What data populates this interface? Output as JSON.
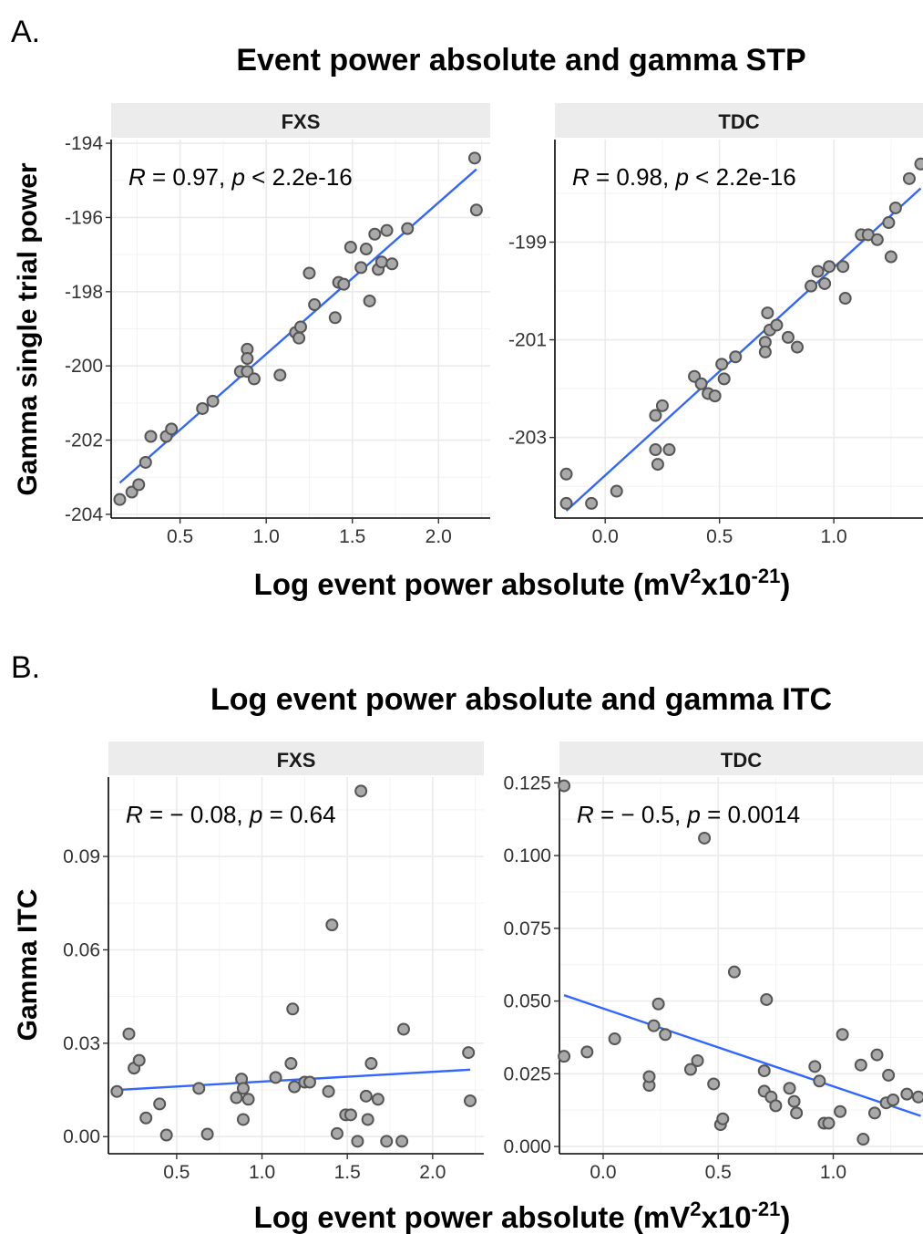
{
  "panels": [
    {
      "label": "A.",
      "title": "Event power absolute and gamma STP",
      "ylabel": "Gamma single trial power",
      "xlabel_main": "Log event power absolute (mV",
      "xlabel_sup1": "2",
      "xlabel_mid": "x10",
      "xlabel_sup2": "-21",
      "xlabel_end": ")"
    },
    {
      "label": "B.",
      "title": "Log event power absolute and gamma ITC",
      "ylabel": "Gamma ITC",
      "xlabel_main": "Log event power absolute (mV",
      "xlabel_sup1": "2",
      "xlabel_mid": "x10",
      "xlabel_sup2": "-21",
      "xlabel_end": ")"
    }
  ],
  "chart_data": [
    {
      "type": "scatter",
      "panel": "A",
      "facet": "FXS",
      "stat": {
        "R": "0.97",
        "p": "< 2.2e-16"
      },
      "xlim": [
        0.1,
        2.3
      ],
      "ylim": [
        -204.1,
        -193.9
      ],
      "xticks": [
        0.5,
        1.0,
        1.5,
        2.0
      ],
      "xtick_labels": [
        "0.5",
        "1.0",
        "1.5",
        "2.0"
      ],
      "yticks": [
        -204,
        -202,
        -200,
        -198,
        -196,
        -194
      ],
      "ytick_labels": [
        "-204",
        "-202",
        "-200",
        "-198",
        "-196",
        "-194"
      ],
      "grid": true,
      "points": [
        [
          0.15,
          -203.6
        ],
        [
          0.22,
          -203.4
        ],
        [
          0.26,
          -203.2
        ],
        [
          0.3,
          -202.6
        ],
        [
          0.33,
          -201.9
        ],
        [
          0.42,
          -201.9
        ],
        [
          0.45,
          -201.7
        ],
        [
          0.63,
          -201.15
        ],
        [
          0.69,
          -200.95
        ],
        [
          0.85,
          -200.15
        ],
        [
          0.89,
          -200.15
        ],
        [
          0.89,
          -199.55
        ],
        [
          0.89,
          -199.8
        ],
        [
          0.93,
          -200.35
        ],
        [
          1.08,
          -200.25
        ],
        [
          1.17,
          -199.1
        ],
        [
          1.19,
          -199.25
        ],
        [
          1.2,
          -198.95
        ],
        [
          1.25,
          -197.5
        ],
        [
          1.28,
          -198.35
        ],
        [
          1.4,
          -198.7
        ],
        [
          1.42,
          -197.75
        ],
        [
          1.45,
          -197.8
        ],
        [
          1.49,
          -196.8
        ],
        [
          1.55,
          -197.35
        ],
        [
          1.58,
          -196.85
        ],
        [
          1.6,
          -198.25
        ],
        [
          1.63,
          -196.45
        ],
        [
          1.65,
          -197.4
        ],
        [
          1.67,
          -197.2
        ],
        [
          1.7,
          -196.35
        ],
        [
          1.73,
          -197.25
        ],
        [
          1.82,
          -196.3
        ],
        [
          2.21,
          -194.4
        ],
        [
          2.22,
          -195.8
        ]
      ],
      "fit": {
        "x": [
          0.15,
          2.22
        ],
        "y": [
          -203.15,
          -194.7
        ]
      }
    },
    {
      "type": "scatter",
      "panel": "A",
      "facet": "TDC",
      "stat": {
        "R": "0.98",
        "p": "< 2.2e-16"
      },
      "xlim": [
        -0.22,
        1.39
      ],
      "ylim": [
        -204.65,
        -196.9
      ],
      "xticks": [
        0.0,
        0.5,
        1.0
      ],
      "xtick_labels": [
        "0.0",
        "0.5",
        "1.0"
      ],
      "yticks": [
        -203,
        -201,
        -199
      ],
      "ytick_labels": [
        "-203",
        "-201",
        "-199"
      ],
      "grid": true,
      "points": [
        [
          -0.17,
          -203.75
        ],
        [
          -0.17,
          -204.35
        ],
        [
          -0.06,
          -204.35
        ],
        [
          0.05,
          -204.1
        ],
        [
          0.22,
          -202.55
        ],
        [
          0.22,
          -203.25
        ],
        [
          0.23,
          -203.55
        ],
        [
          0.25,
          -202.35
        ],
        [
          0.28,
          -203.25
        ],
        [
          0.39,
          -201.75
        ],
        [
          0.42,
          -201.9
        ],
        [
          0.45,
          -202.1
        ],
        [
          0.48,
          -202.15
        ],
        [
          0.51,
          -201.5
        ],
        [
          0.52,
          -201.8
        ],
        [
          0.57,
          -201.35
        ],
        [
          0.7,
          -201.05
        ],
        [
          0.7,
          -201.25
        ],
        [
          0.71,
          -200.45
        ],
        [
          0.72,
          -200.8
        ],
        [
          0.75,
          -200.7
        ],
        [
          0.8,
          -200.95
        ],
        [
          0.84,
          -201.15
        ],
        [
          0.9,
          -199.9
        ],
        [
          0.93,
          -199.6
        ],
        [
          0.96,
          -199.85
        ],
        [
          0.98,
          -199.5
        ],
        [
          1.04,
          -199.5
        ],
        [
          1.05,
          -200.15
        ],
        [
          1.12,
          -198.85
        ],
        [
          1.15,
          -198.85
        ],
        [
          1.19,
          -198.95
        ],
        [
          1.24,
          -198.6
        ],
        [
          1.25,
          -199.3
        ],
        [
          1.27,
          -198.3
        ],
        [
          1.33,
          -197.7
        ],
        [
          1.38,
          -197.4
        ]
      ],
      "fit": {
        "x": [
          -0.17,
          1.38
        ],
        "y": [
          -204.5,
          -197.9
        ]
      }
    },
    {
      "type": "scatter",
      "panel": "B",
      "facet": "FXS",
      "stat": {
        "R": "− 0.08",
        "p": "= 0.64"
      },
      "xlim": [
        0.1,
        2.3
      ],
      "ylim": [
        -0.0055,
        0.1155
      ],
      "xticks": [
        0.5,
        1.0,
        1.5,
        2.0
      ],
      "xtick_labels": [
        "0.5",
        "1.0",
        "1.5",
        "2.0"
      ],
      "yticks": [
        0.0,
        0.03,
        0.06,
        0.09
      ],
      "ytick_labels": [
        "0.00",
        "0.03",
        "0.06",
        "0.09"
      ],
      "grid": true,
      "points": [
        [
          0.15,
          0.0145
        ],
        [
          0.22,
          0.033
        ],
        [
          0.25,
          0.022
        ],
        [
          0.28,
          0.0245
        ],
        [
          0.32,
          0.006
        ],
        [
          0.4,
          0.0105
        ],
        [
          0.44,
          0.0005
        ],
        [
          0.63,
          0.0155
        ],
        [
          0.68,
          0.0008
        ],
        [
          0.85,
          0.0125
        ],
        [
          0.88,
          0.0185
        ],
        [
          0.89,
          0.0155
        ],
        [
          0.89,
          0.0055
        ],
        [
          0.92,
          0.012
        ],
        [
          1.08,
          0.019
        ],
        [
          1.17,
          0.0235
        ],
        [
          1.18,
          0.041
        ],
        [
          1.19,
          0.016
        ],
        [
          1.25,
          0.0175
        ],
        [
          1.28,
          0.0175
        ],
        [
          1.39,
          0.0145
        ],
        [
          1.41,
          0.068
        ],
        [
          1.44,
          0.001
        ],
        [
          1.49,
          0.007
        ],
        [
          1.52,
          0.007
        ],
        [
          1.56,
          -0.0015
        ],
        [
          1.58,
          0.111
        ],
        [
          1.61,
          0.013
        ],
        [
          1.62,
          0.0055
        ],
        [
          1.64,
          0.0235
        ],
        [
          1.68,
          0.012
        ],
        [
          1.73,
          -0.0015
        ],
        [
          1.82,
          -0.0015
        ],
        [
          1.83,
          0.0345
        ],
        [
          2.21,
          0.027
        ],
        [
          2.22,
          0.0115
        ]
      ],
      "fit": {
        "x": [
          0.15,
          2.22
        ],
        "y": [
          0.015,
          0.0215
        ]
      }
    },
    {
      "type": "scatter",
      "panel": "B",
      "facet": "TDC",
      "stat": {
        "R": "− 0.5",
        "p": "= 0.0014"
      },
      "xlim": [
        -0.19,
        1.39
      ],
      "ylim": [
        -0.0025,
        0.127
      ],
      "xticks": [
        0.0,
        0.5,
        1.0
      ],
      "xtick_labels": [
        "0.0",
        "0.5",
        "1.0"
      ],
      "yticks": [
        0.0,
        0.025,
        0.05,
        0.075,
        0.1,
        0.125
      ],
      "ytick_labels": [
        "0.000",
        "0.025",
        "0.050",
        "0.075",
        "0.100",
        "0.125"
      ],
      "grid": true,
      "points": [
        [
          -0.17,
          0.124
        ],
        [
          -0.17,
          0.031
        ],
        [
          -0.07,
          0.0325
        ],
        [
          0.05,
          0.037
        ],
        [
          0.2,
          0.021
        ],
        [
          0.2,
          0.024
        ],
        [
          0.22,
          0.0415
        ],
        [
          0.24,
          0.049
        ],
        [
          0.27,
          0.0385
        ],
        [
          0.38,
          0.0265
        ],
        [
          0.41,
          0.0295
        ],
        [
          0.44,
          0.106
        ],
        [
          0.48,
          0.0215
        ],
        [
          0.51,
          0.0075
        ],
        [
          0.52,
          0.0095
        ],
        [
          0.57,
          0.06
        ],
        [
          0.7,
          0.026
        ],
        [
          0.7,
          0.019
        ],
        [
          0.71,
          0.0505
        ],
        [
          0.73,
          0.017
        ],
        [
          0.75,
          0.014
        ],
        [
          0.81,
          0.02
        ],
        [
          0.83,
          0.0155
        ],
        [
          0.84,
          0.0115
        ],
        [
          0.92,
          0.0275
        ],
        [
          0.94,
          0.0225
        ],
        [
          0.96,
          0.008
        ],
        [
          0.98,
          0.008
        ],
        [
          1.03,
          0.012
        ],
        [
          1.04,
          0.0385
        ],
        [
          1.12,
          0.028
        ],
        [
          1.13,
          0.0025
        ],
        [
          1.18,
          0.0115
        ],
        [
          1.19,
          0.0315
        ],
        [
          1.23,
          0.015
        ],
        [
          1.24,
          0.0245
        ],
        [
          1.26,
          0.016
        ],
        [
          1.32,
          0.018
        ],
        [
          1.37,
          0.017
        ]
      ],
      "fit": {
        "x": [
          -0.17,
          1.38
        ],
        "y": [
          0.052,
          0.0105
        ]
      }
    }
  ],
  "colors": {
    "point_fill": "#a9a9a9",
    "point_stroke": "#555555",
    "fit": "#3366ff",
    "strip": "#ececec",
    "grid": "#ebebeb"
  }
}
